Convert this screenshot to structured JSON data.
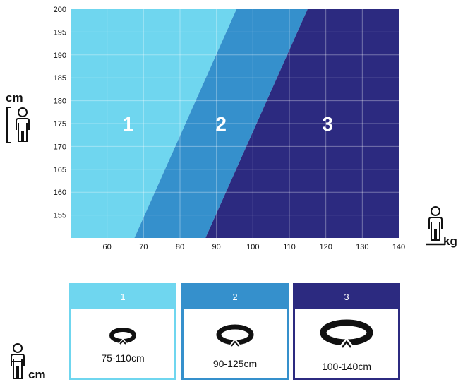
{
  "chart_data": {
    "type": "area",
    "x_ticks": [
      60,
      70,
      80,
      90,
      100,
      110,
      120,
      130,
      140
    ],
    "y_ticks": [
      155,
      160,
      165,
      170,
      175,
      180,
      185,
      190,
      195,
      200
    ],
    "xlim": [
      50,
      140
    ],
    "ylim": [
      150,
      200
    ],
    "x_unit": "kg",
    "y_unit": "cm",
    "grid": true,
    "zones": [
      {
        "label": "1",
        "color": "#6fd6ef"
      },
      {
        "label": "2",
        "color": "#3590cc"
      },
      {
        "label": "3",
        "color": "#2c2a80"
      }
    ],
    "boundaries": [
      {
        "between": "1-2",
        "points": [
          {
            "x": 67.5,
            "y": 150
          },
          {
            "x": 95.5,
            "y": 200
          }
        ]
      },
      {
        "between": "2-3",
        "points": [
          {
            "x": 87,
            "y": 150
          },
          {
            "x": 115,
            "y": 200
          }
        ]
      }
    ]
  },
  "sizes": {
    "unit_label": "cm",
    "cards": [
      {
        "label": "1",
        "range": "75-110cm",
        "color": "#6fd6ef"
      },
      {
        "label": "2",
        "range": "90-125cm",
        "color": "#3590cc"
      },
      {
        "label": "3",
        "range": "100-140cm",
        "color": "#2c2a80"
      }
    ]
  }
}
